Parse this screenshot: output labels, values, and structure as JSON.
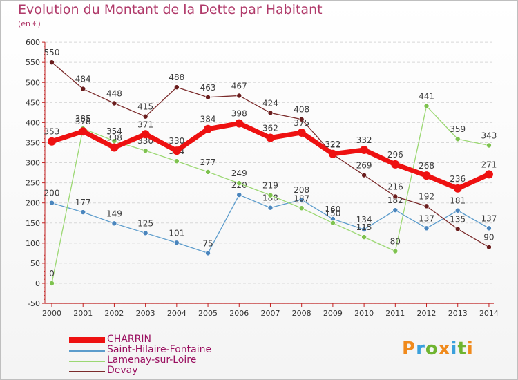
{
  "title": "Evolution du Montant de la Dette par Habitant",
  "unit": "(en €)",
  "logo": {
    "text": "Proxiti",
    "colors": [
      "#f08a1c",
      "#3aa0dc",
      "#6fb430",
      "#f08a1c",
      "#3aa0dc",
      "#6fb430",
      "#f08a1c"
    ]
  },
  "chart_data": {
    "type": "line",
    "title": "Evolution du Montant de la Dette par Habitant",
    "ylabel": "(en €)",
    "xlabel": "",
    "ylim": [
      -50,
      600
    ],
    "yticks": [
      -50,
      0,
      50,
      100,
      150,
      200,
      250,
      300,
      350,
      400,
      450,
      500,
      550,
      600
    ],
    "grid": "horizontal",
    "legend_placement": "bottom-left",
    "x": [
      "2000",
      "2001",
      "2002",
      "2003",
      "2004",
      "2005",
      "2006",
      "2007",
      "2008",
      "2009",
      "2010",
      "2011",
      "2012",
      "2013",
      "2014"
    ],
    "series": [
      {
        "name": "Saint-Hilaire-Fontaine",
        "color": "#5c9ccc",
        "marker": "#4a85bd",
        "values": [
          200,
          177,
          149,
          125,
          101,
          75,
          220,
          188,
          208,
          160,
          134,
          182,
          137,
          181,
          137
        ],
        "labels": [
          "200",
          "177",
          "149",
          "125",
          "101",
          "75",
          "220",
          "188",
          "208",
          "160",
          "134",
          "182",
          "137",
          "181",
          "137"
        ]
      },
      {
        "name": "Lamenay-sur-Loire",
        "color": "#9cd873",
        "marker": "#7ec24f",
        "values": [
          0,
          385,
          354,
          330,
          304,
          277,
          249,
          219,
          187,
          150,
          115,
          80,
          441,
          359,
          343
        ],
        "labels": [
          "0",
          "385",
          "354",
          "330",
          "304",
          "277",
          "249",
          "219",
          "187",
          "150",
          "115",
          "80",
          "441",
          "359",
          "343"
        ]
      },
      {
        "name": "Devay",
        "color": "#7b2b2b",
        "marker": "#6a1d1d",
        "values": [
          550,
          484,
          448,
          415,
          488,
          463,
          467,
          424,
          408,
          321,
          269,
          216,
          192,
          135,
          90
        ],
        "labels": [
          "550",
          "484",
          "448",
          "415",
          "488",
          "463",
          "467",
          "424",
          "408",
          "321",
          "269",
          "216",
          "192",
          "135",
          "90"
        ]
      },
      {
        "name": "CHARRIN",
        "color": "#ee1111",
        "marker": "#ee1111",
        "values": [
          353,
          378,
          338,
          371,
          330,
          384,
          398,
          362,
          375,
          322,
          332,
          296,
          268,
          236,
          271
        ],
        "labels": [
          "353",
          "378",
          "338",
          "371",
          "330",
          "384",
          "398",
          "362",
          "375",
          "322",
          "332",
          "296",
          "268",
          "236",
          "271"
        ]
      }
    ],
    "legend": [
      {
        "name": "CHARRIN",
        "color": "#ee1111",
        "text_color": "#9a1060"
      },
      {
        "name": "Saint-Hilaire-Fontaine",
        "color": "#5c9ccc",
        "text_color": "#9a1060"
      },
      {
        "name": "Lamenay-sur-Loire",
        "color": "#9cd873",
        "text_color": "#9a1060"
      },
      {
        "name": "Devay",
        "color": "#7b2b2b",
        "text_color": "#9a1060"
      }
    ]
  }
}
